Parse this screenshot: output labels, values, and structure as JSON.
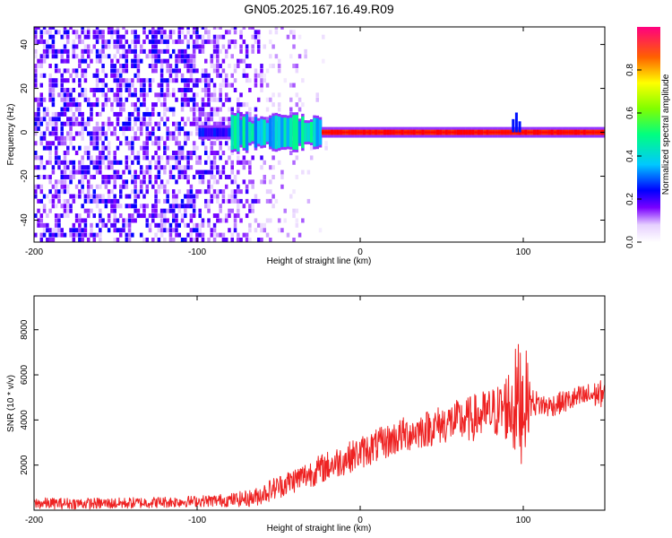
{
  "figure_title": "GN05.2025.167.16.49.R09",
  "chart_data": [
    {
      "type": "heatmap",
      "title": "",
      "xlabel": "Height of straight line (km)",
      "ylabel": "Frequency (Hz)",
      "xlim": [
        -200,
        150
      ],
      "ylim": [
        -50,
        48
      ],
      "xticks": [
        "-200",
        "-100",
        "0",
        "100"
      ],
      "yticks": [
        "-40",
        "-20",
        "0",
        "20",
        "40"
      ],
      "colorbar": {
        "label": "Normalized spectral amplitude",
        "range": [
          0,
          1
        ],
        "ticks": [
          "0.0",
          "0.2",
          "0.4",
          "0.6",
          "0.8"
        ]
      },
      "regions": [
        {
          "x_range": [
            -200,
            -100
          ],
          "description": "dense broadband noise, amplitude 0.1-0.25"
        },
        {
          "x_range": [
            -100,
            -40
          ],
          "description": "fading broadband noise"
        },
        {
          "x_range": [
            -75,
            -35
          ],
          "description": "onset of signal near 0 Hz, amplitude 0.3-0.45"
        },
        {
          "x_range": [
            -25,
            150
          ],
          "frequency": 0,
          "description": "narrow carrier band near 0 Hz, amplitude ~0.9-1.0"
        }
      ],
      "colors": {
        "low": "#ffffff",
        "mid": "#6a00ff",
        "high": "#ff0000"
      }
    },
    {
      "type": "line",
      "title": "",
      "xlabel": "Height of straight line (km)",
      "ylabel": "SNR (10 * v/v)",
      "xlim": [
        -200,
        150
      ],
      "ylim": [
        0,
        9500
      ],
      "xticks": [
        "-200",
        "-100",
        "0",
        "100"
      ],
      "yticks": [
        "2000",
        "4000",
        "6000",
        "8000"
      ],
      "series": [
        {
          "color": "#ee2222",
          "x": [
            -200,
            -175,
            -150,
            -125,
            -100,
            -80,
            -65,
            -55,
            -45,
            -35,
            -25,
            -15,
            -5,
            5,
            15,
            25,
            35,
            45,
            55,
            65,
            75,
            85,
            90,
            95,
            100,
            105,
            115,
            125,
            135,
            150
          ],
          "y": [
            300,
            300,
            300,
            350,
            400,
            450,
            550,
            900,
            1200,
            1500,
            1800,
            2100,
            2400,
            2700,
            3000,
            3300,
            3500,
            3700,
            3900,
            4000,
            4200,
            4400,
            4600,
            4700,
            5000,
            4800,
            4600,
            4800,
            5000,
            5200
          ],
          "noise_amplitude": [
            250,
            250,
            250,
            250,
            250,
            300,
            400,
            500,
            550,
            600,
            650,
            700,
            700,
            750,
            750,
            800,
            800,
            850,
            900,
            1000,
            1100,
            1200,
            1600,
            2500,
            3000,
            600,
            500,
            500,
            550,
            600
          ]
        }
      ]
    }
  ]
}
